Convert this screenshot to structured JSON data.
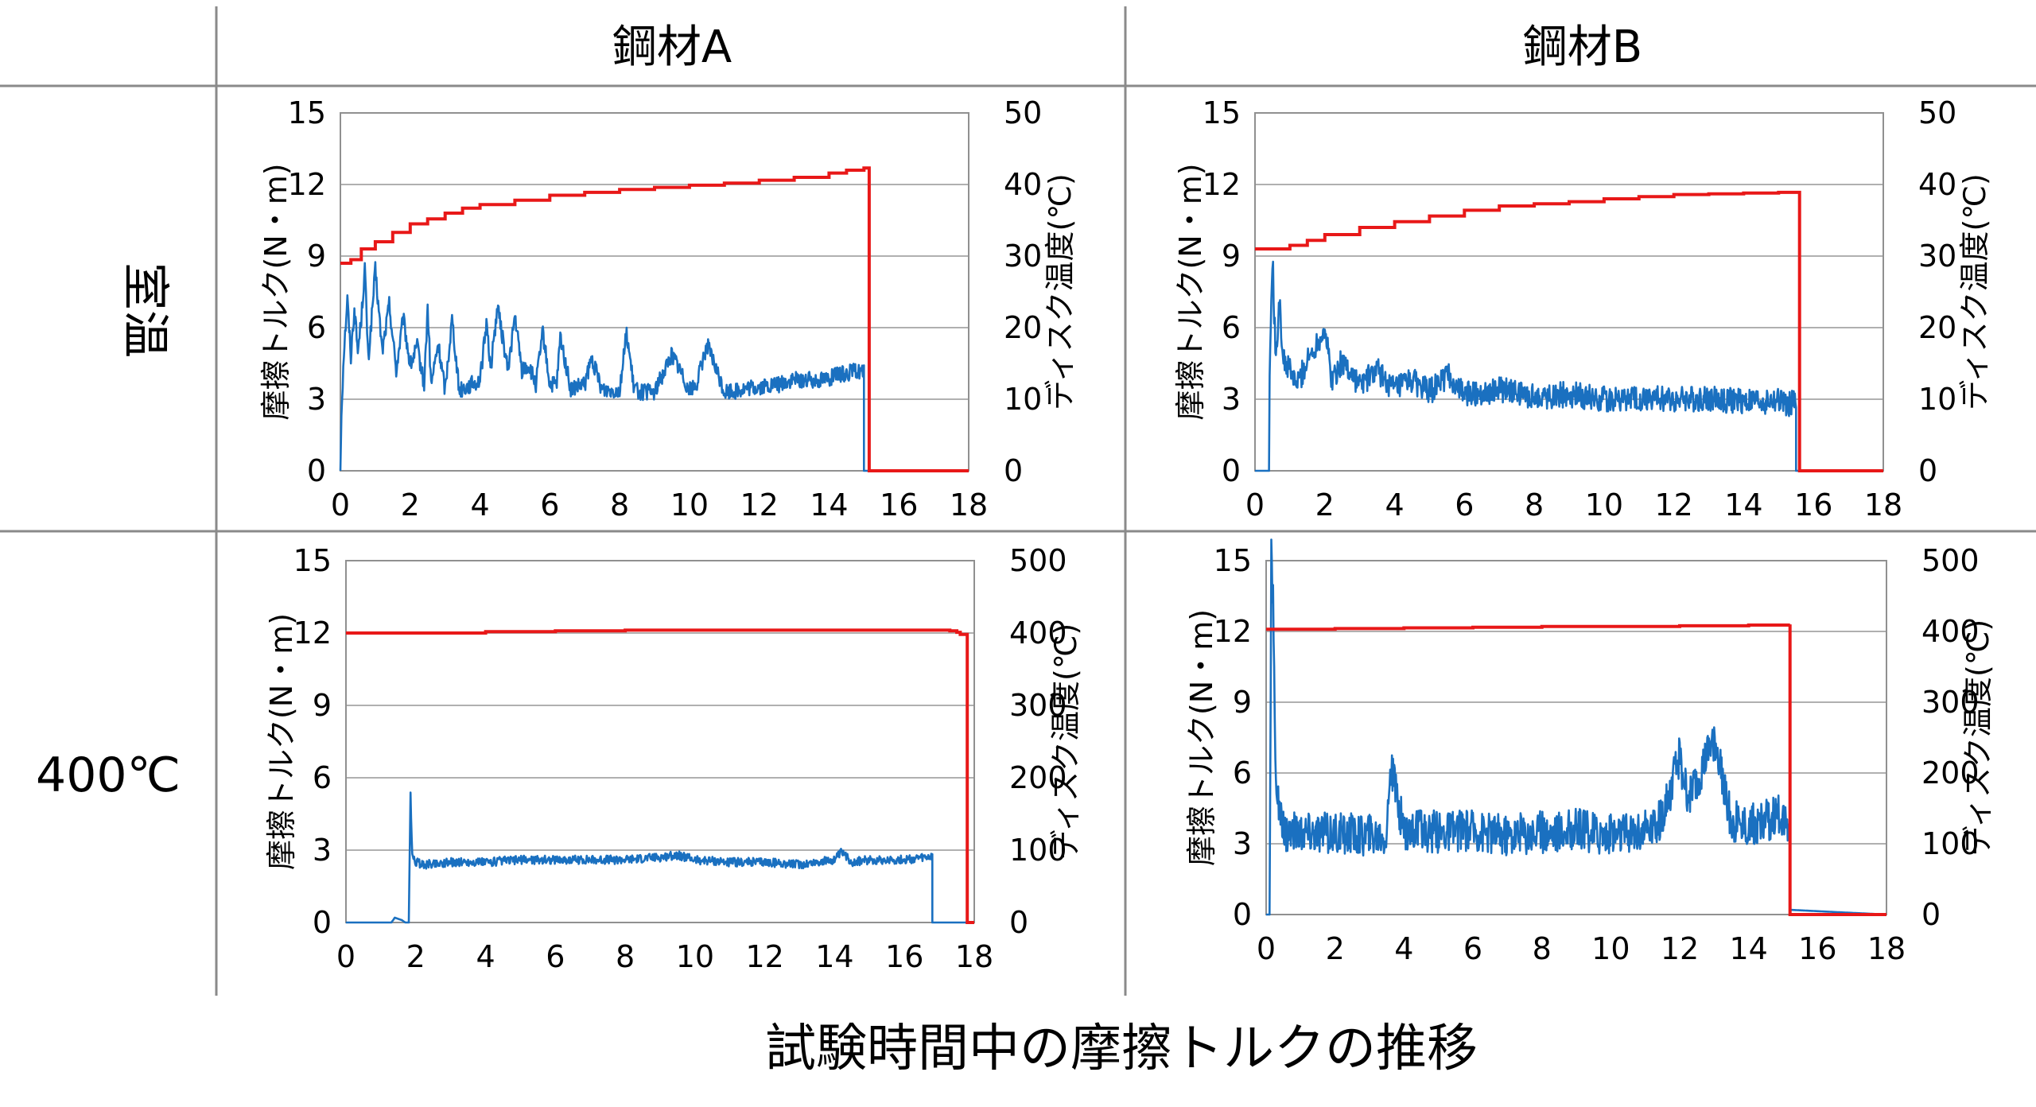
{
  "header": {
    "col_a": "鋼材A",
    "col_b": "鋼材B",
    "row_room": "室温",
    "row_hot": "400℃"
  },
  "caption": "試験時間中の摩擦トルクの推移",
  "colors": {
    "torque": "#1a70c0",
    "temperature": "#e81818",
    "grid": "#b0b0b0",
    "frame": "#909090"
  },
  "chart_data": [
    {
      "id": "a-room",
      "type": "line",
      "ylabel": "摩擦トルク(N・m)",
      "y2label": "ディスク温度(℃)",
      "xlim": [
        0,
        18
      ],
      "xticks": [
        "0",
        "2",
        "4",
        "6",
        "8",
        "10",
        "12",
        "14",
        "16",
        "18"
      ],
      "ylim": [
        0,
        15
      ],
      "yticks": [
        "0",
        "3",
        "6",
        "9",
        "12",
        "15"
      ],
      "y2lim": [
        0,
        50
      ],
      "y2ticks": [
        "0",
        "10",
        "20",
        "30",
        "40",
        "50"
      ],
      "temperature": {
        "x": [
          0,
          0.3,
          0.6,
          1,
          1.5,
          2,
          2.5,
          3,
          3.5,
          4,
          5,
          6,
          7,
          8,
          9,
          10,
          11,
          12,
          13,
          14,
          14.5,
          15,
          15.15,
          15.15,
          18
        ],
        "y": [
          29,
          29.5,
          31,
          32,
          33.3,
          34.5,
          35.2,
          36,
          36.7,
          37.2,
          37.8,
          38.5,
          38.9,
          39.3,
          39.6,
          39.9,
          40.2,
          40.6,
          41,
          41.6,
          42,
          42.3,
          42.3,
          0,
          0
        ]
      },
      "torque": {
        "x": [
          0,
          0.03,
          0.1,
          0.2,
          0.3,
          0.4,
          0.5,
          0.6,
          0.7,
          0.8,
          1,
          1.2,
          1.4,
          1.6,
          1.8,
          2,
          2.2,
          2.4,
          2.5,
          2.6,
          2.8,
          3,
          3.2,
          3.4,
          3.6,
          4,
          4.2,
          4.3,
          4.5,
          4.8,
          5,
          5.2,
          5.4,
          5.6,
          5.8,
          6,
          6.2,
          6.3,
          6.6,
          7,
          7.2,
          7.5,
          8,
          8.2,
          8.4,
          8.6,
          9,
          9.5,
          10,
          10.2,
          10.5,
          11,
          11.5,
          12,
          12.5,
          13,
          13.5,
          14,
          14.5,
          14.9,
          15,
          15,
          18
        ],
        "y": [
          0,
          2.5,
          5,
          7.2,
          4.8,
          6.8,
          5,
          6.4,
          8.5,
          4.6,
          8.4,
          5,
          7,
          4.2,
          6.4,
          4.4,
          5.2,
          3.6,
          6.8,
          3.6,
          5.3,
          3.4,
          6.4,
          3.4,
          3.5,
          3.8,
          6.3,
          4.2,
          6.9,
          4.2,
          6.5,
          4.2,
          4.4,
          3.6,
          5.8,
          3.6,
          3.6,
          5.6,
          3.4,
          3.6,
          4.7,
          3.4,
          3.4,
          5.8,
          3.5,
          3.3,
          3.3,
          4.9,
          3.4,
          3.6,
          5.3,
          3.3,
          3.4,
          3.5,
          3.6,
          3.8,
          3.8,
          3.9,
          4.1,
          4.2,
          4.1,
          0,
          0
        ]
      }
    },
    {
      "id": "b-room",
      "type": "line",
      "ylabel": "摩擦トルク(N・m)",
      "y2label": "ディスク温度(℃)",
      "xlim": [
        0,
        18
      ],
      "xticks": [
        "0",
        "2",
        "4",
        "6",
        "8",
        "10",
        "12",
        "14",
        "16",
        "18"
      ],
      "ylim": [
        0,
        15
      ],
      "yticks": [
        "0",
        "3",
        "6",
        "9",
        "12",
        "15"
      ],
      "y2lim": [
        0,
        50
      ],
      "y2ticks": [
        "0",
        "10",
        "20",
        "30",
        "40",
        "50"
      ],
      "temperature": {
        "x": [
          0,
          1,
          1.5,
          2,
          3,
          4,
          5,
          6,
          7,
          8,
          9,
          10,
          11,
          12,
          13,
          14,
          15,
          15.6,
          15.6,
          18
        ],
        "y": [
          31,
          31.5,
          32.2,
          33,
          34,
          34.8,
          35.6,
          36.4,
          37,
          37.3,
          37.6,
          38,
          38.3,
          38.6,
          38.7,
          38.8,
          38.9,
          38.9,
          0,
          0
        ]
      },
      "torque": {
        "x": [
          0,
          0.4,
          0.42,
          0.5,
          0.6,
          0.7,
          0.8,
          1,
          1.2,
          1.5,
          2,
          2.2,
          2.5,
          3,
          3.5,
          4,
          4.5,
          5,
          5.5,
          6,
          7,
          8,
          9,
          10,
          11,
          12,
          13,
          14,
          15,
          15.5,
          15.5,
          18
        ],
        "y": [
          0,
          0,
          4,
          9,
          4.4,
          7.5,
          4.6,
          4.2,
          3.6,
          4.6,
          6,
          3.8,
          4.6,
          3.6,
          4.2,
          3.4,
          3.8,
          3.3,
          4,
          3.2,
          3.4,
          3.1,
          3.2,
          3,
          3,
          3,
          3,
          2.9,
          2.9,
          2.8,
          0,
          0
        ]
      }
    },
    {
      "id": "a-hot",
      "type": "line",
      "ylabel": "摩擦トルク(N・m)",
      "y2label": "ディスク温度(℃)",
      "xlim": [
        0,
        18
      ],
      "xticks": [
        "0",
        "2",
        "4",
        "6",
        "8",
        "10",
        "12",
        "14",
        "16",
        "18"
      ],
      "ylim": [
        0,
        15
      ],
      "yticks": [
        "0",
        "3",
        "6",
        "9",
        "12",
        "15"
      ],
      "y2lim": [
        0,
        500
      ],
      "y2ticks": [
        "0",
        "100",
        "200",
        "300",
        "400",
        "500"
      ],
      "temperature": {
        "x": [
          0,
          2,
          4,
          6,
          8,
          10,
          12,
          14,
          16,
          17.3,
          17.5,
          17.6,
          17.8,
          17.8,
          18
        ],
        "y": [
          400,
          400,
          402,
          403,
          404,
          404,
          404,
          404,
          404,
          403,
          401,
          398,
          396,
          0,
          0
        ]
      },
      "torque": {
        "x": [
          0,
          1.3,
          1.4,
          1.6,
          1.7,
          1.8,
          1.85,
          1.9,
          2,
          2.2,
          3,
          4,
          5,
          6,
          7,
          8,
          9,
          9.5,
          10,
          11,
          12,
          13,
          13.5,
          14,
          14.2,
          14.5,
          15,
          16,
          16.8,
          16.8,
          17,
          18
        ],
        "y": [
          0,
          0,
          0.2,
          0.1,
          0,
          0,
          5.3,
          2.7,
          2.5,
          2.4,
          2.5,
          2.5,
          2.6,
          2.6,
          2.6,
          2.6,
          2.7,
          2.8,
          2.6,
          2.5,
          2.5,
          2.4,
          2.5,
          2.6,
          2.9,
          2.5,
          2.6,
          2.6,
          2.7,
          0,
          0,
          0
        ]
      }
    },
    {
      "id": "b-hot",
      "type": "line",
      "ylabel": "摩擦トルク(N・m)",
      "y2label": "ディスク温度(℃)",
      "xlim": [
        0,
        18
      ],
      "xticks": [
        "0",
        "2",
        "4",
        "6",
        "8",
        "10",
        "12",
        "14",
        "16",
        "18"
      ],
      "ylim": [
        0,
        15
      ],
      "yticks": [
        "0",
        "3",
        "6",
        "9",
        "12",
        "15"
      ],
      "y2lim": [
        0,
        500
      ],
      "y2ticks": [
        "0",
        "100",
        "200",
        "300",
        "400",
        "500"
      ],
      "temperature": {
        "x": [
          0,
          2,
          4,
          6,
          8,
          10,
          12,
          14,
          15.2,
          15.2,
          18
        ],
        "y": [
          403,
          404,
          405,
          406,
          407,
          407,
          408,
          409,
          410,
          0,
          0
        ]
      },
      "torque": {
        "x": [
          0,
          0.1,
          0.15,
          0.2,
          0.25,
          0.3,
          0.4,
          0.5,
          1,
          2,
          3,
          3.5,
          3.6,
          4,
          5,
          6,
          7,
          8,
          9,
          10,
          11,
          11.5,
          12,
          12.2,
          12.5,
          13,
          13.5,
          14,
          14.5,
          15,
          15.2,
          15.2,
          18
        ],
        "y": [
          0,
          0,
          15,
          13.5,
          8,
          5.5,
          4,
          3.5,
          3.5,
          3.4,
          3.4,
          3.4,
          6.3,
          3.6,
          3.5,
          3.6,
          3.4,
          3.5,
          3.6,
          3.4,
          3.6,
          4,
          6.8,
          5,
          5.5,
          7.4,
          4,
          3.8,
          4,
          4.2,
          3.8,
          0.2,
          0
        ]
      }
    }
  ]
}
